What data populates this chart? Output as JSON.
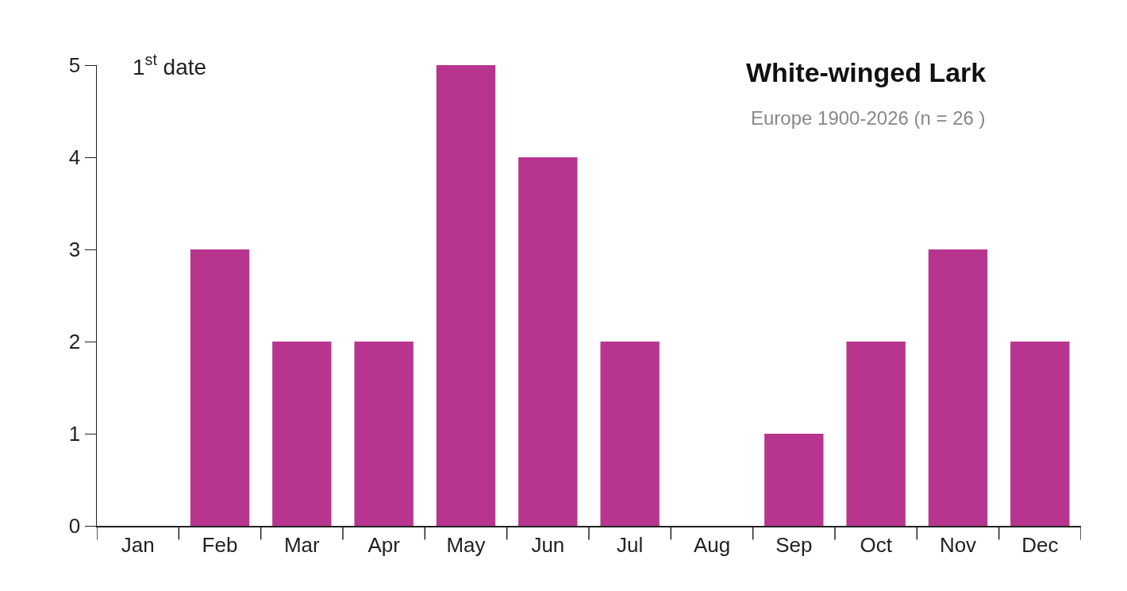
{
  "chart_data": {
    "type": "bar",
    "title": "White-winged Lark",
    "subtitle": "Europe 1900-2026 (n = 26 )",
    "ylabel": "1$^{st}$ date",
    "categories": [
      "Jan",
      "Feb",
      "Mar",
      "Apr",
      "May",
      "Jun",
      "Jul",
      "Aug",
      "Sep",
      "Oct",
      "Nov",
      "Dec"
    ],
    "values": [
      0,
      3,
      2,
      2,
      5,
      4,
      2,
      0,
      1,
      2,
      3,
      2
    ],
    "color": "#b8358f",
    "ylim": [
      0,
      5
    ],
    "yticks": [
      0,
      1,
      2,
      3,
      4,
      5
    ],
    "grid": false
  }
}
